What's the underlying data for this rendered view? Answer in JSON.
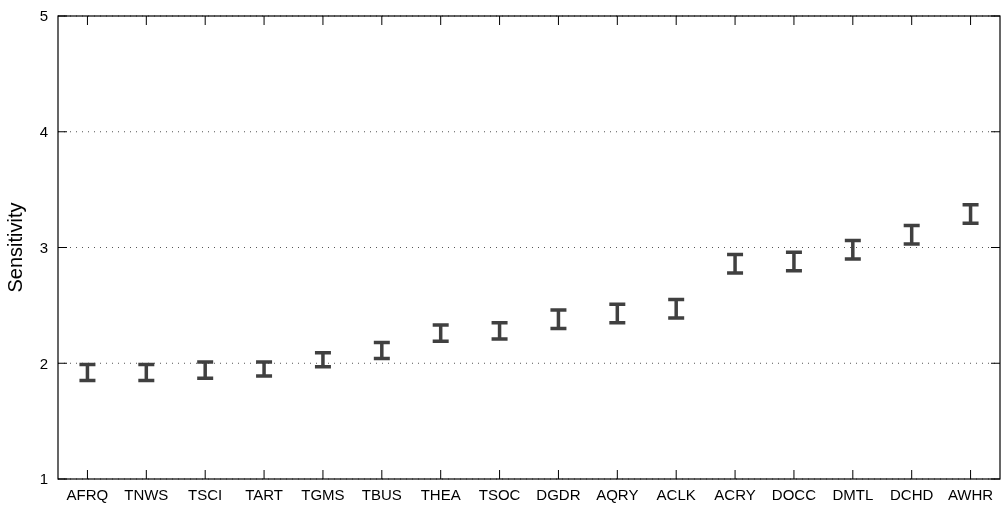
{
  "chart_data": {
    "type": "scatter",
    "ylabel": "Sensitivity",
    "categories": [
      "AFRQ",
      "TNWS",
      "TSCI",
      "TART",
      "TGMS",
      "TBUS",
      "THEA",
      "TSOC",
      "DGDR",
      "AQRY",
      "ACLK",
      "ACRY",
      "DOCC",
      "DMTL",
      "DCHD",
      "AWHR"
    ],
    "series": [
      {
        "color": "#404040",
        "values": [
          1.92,
          1.92,
          1.94,
          1.95,
          2.03,
          2.11,
          2.26,
          2.28,
          2.38,
          2.43,
          2.47,
          2.86,
          2.88,
          2.98,
          3.11,
          3.29
        ],
        "errors": [
          0.07,
          0.07,
          0.07,
          0.06,
          0.06,
          0.07,
          0.07,
          0.07,
          0.08,
          0.08,
          0.08,
          0.08,
          0.08,
          0.08,
          0.08,
          0.08
        ]
      }
    ],
    "ylim": [
      1,
      5
    ],
    "yticks": [
      1,
      2,
      3,
      4,
      5
    ],
    "grid": "y"
  }
}
